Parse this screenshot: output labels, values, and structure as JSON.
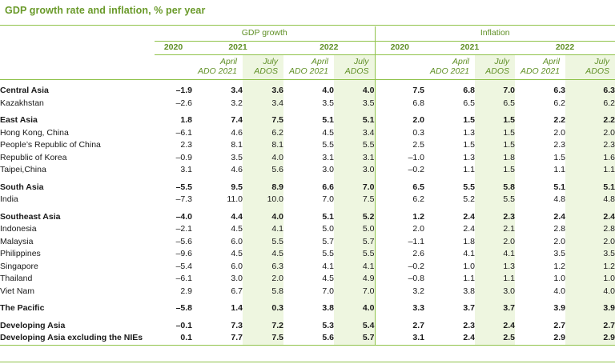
{
  "title": "GDP growth rate and inflation, % per year",
  "headers": {
    "gdp": "GDP growth",
    "inflation": "Inflation",
    "years": [
      "2020",
      "2021",
      "2022"
    ],
    "sub_april": [
      "April",
      "ADO 2021"
    ],
    "sub_july": [
      "July",
      "ADOS"
    ]
  },
  "rows": [
    {
      "label": "Central Asia",
      "type": "group",
      "values": [
        "–1.9",
        "3.4",
        "3.6",
        "4.0",
        "4.0",
        "7.5",
        "6.8",
        "7.0",
        "6.3",
        "6.3"
      ]
    },
    {
      "label": "Kazakhstan",
      "type": "sub",
      "values": [
        "–2.6",
        "3.2",
        "3.4",
        "3.5",
        "3.5",
        "6.8",
        "6.5",
        "6.5",
        "6.2",
        "6.2"
      ]
    },
    {
      "label": "East Asia",
      "type": "group",
      "values": [
        "1.8",
        "7.4",
        "7.5",
        "5.1",
        "5.1",
        "2.0",
        "1.5",
        "1.5",
        "2.2",
        "2.2"
      ]
    },
    {
      "label": "Hong Kong, China",
      "type": "sub",
      "values": [
        "–6.1",
        "4.6",
        "6.2",
        "4.5",
        "3.4",
        "0.3",
        "1.3",
        "1.5",
        "2.0",
        "2.0"
      ]
    },
    {
      "label": "People’s Republic of China",
      "type": "sub",
      "values": [
        "2.3",
        "8.1",
        "8.1",
        "5.5",
        "5.5",
        "2.5",
        "1.5",
        "1.5",
        "2.3",
        "2.3"
      ]
    },
    {
      "label": "Republic of Korea",
      "type": "sub",
      "values": [
        "–0.9",
        "3.5",
        "4.0",
        "3.1",
        "3.1",
        "–1.0",
        "1.3",
        "1.8",
        "1.5",
        "1.6"
      ]
    },
    {
      "label": "Taipei,China",
      "type": "sub",
      "values": [
        "3.1",
        "4.6",
        "5.6",
        "3.0",
        "3.0",
        "–0.2",
        "1.1",
        "1.5",
        "1.1",
        "1.1"
      ]
    },
    {
      "label": "South Asia",
      "type": "group",
      "values": [
        "–5.5",
        "9.5",
        "8.9",
        "6.6",
        "7.0",
        "6.5",
        "5.5",
        "5.8",
        "5.1",
        "5.1"
      ]
    },
    {
      "label": "India",
      "type": "sub",
      "values": [
        "–7.3",
        "11.0",
        "10.0",
        "7.0",
        "7.5",
        "6.2",
        "5.2",
        "5.5",
        "4.8",
        "4.8"
      ]
    },
    {
      "label": "Southeast Asia",
      "type": "group",
      "values": [
        "–4.0",
        "4.4",
        "4.0",
        "5.1",
        "5.2",
        "1.2",
        "2.4",
        "2.3",
        "2.4",
        "2.4"
      ]
    },
    {
      "label": "Indonesia",
      "type": "sub",
      "values": [
        "–2.1",
        "4.5",
        "4.1",
        "5.0",
        "5.0",
        "2.0",
        "2.4",
        "2.1",
        "2.8",
        "2.8"
      ]
    },
    {
      "label": "Malaysia",
      "type": "sub",
      "values": [
        "–5.6",
        "6.0",
        "5.5",
        "5.7",
        "5.7",
        "–1.1",
        "1.8",
        "2.0",
        "2.0",
        "2.0"
      ]
    },
    {
      "label": "Philippines",
      "type": "sub",
      "values": [
        "–9.6",
        "4.5",
        "4.5",
        "5.5",
        "5.5",
        "2.6",
        "4.1",
        "4.1",
        "3.5",
        "3.5"
      ]
    },
    {
      "label": "Singapore",
      "type": "sub",
      "values": [
        "–5.4",
        "6.0",
        "6.3",
        "4.1",
        "4.1",
        "–0.2",
        "1.0",
        "1.3",
        "1.2",
        "1.2"
      ]
    },
    {
      "label": "Thailand",
      "type": "sub",
      "values": [
        "–6.1",
        "3.0",
        "2.0",
        "4.5",
        "4.9",
        "–0.8",
        "1.1",
        "1.1",
        "1.0",
        "1.0"
      ]
    },
    {
      "label": "Viet Nam",
      "type": "sub",
      "values": [
        "2.9",
        "6.7",
        "5.8",
        "7.0",
        "7.0",
        "3.2",
        "3.8",
        "3.0",
        "4.0",
        "4.0"
      ]
    },
    {
      "label": "The Pacific",
      "type": "group",
      "values": [
        "–5.8",
        "1.4",
        "0.3",
        "3.8",
        "4.0",
        "3.3",
        "3.7",
        "3.7",
        "3.9",
        "3.9"
      ]
    },
    {
      "label": "Developing Asia",
      "type": "group",
      "values": [
        "–0.1",
        "7.3",
        "7.2",
        "5.3",
        "5.4",
        "2.7",
        "2.3",
        "2.4",
        "2.7",
        "2.7"
      ]
    },
    {
      "label": "Developing Asia excluding the NIEs",
      "type": "group",
      "values": [
        "0.1",
        "7.7",
        "7.5",
        "5.6",
        "5.7",
        "3.1",
        "2.4",
        "2.5",
        "2.9",
        "2.9"
      ]
    }
  ],
  "colors": {
    "accent": "#8fc24a",
    "header_text": "#5f8f25",
    "highlight": "#eef6e0"
  }
}
